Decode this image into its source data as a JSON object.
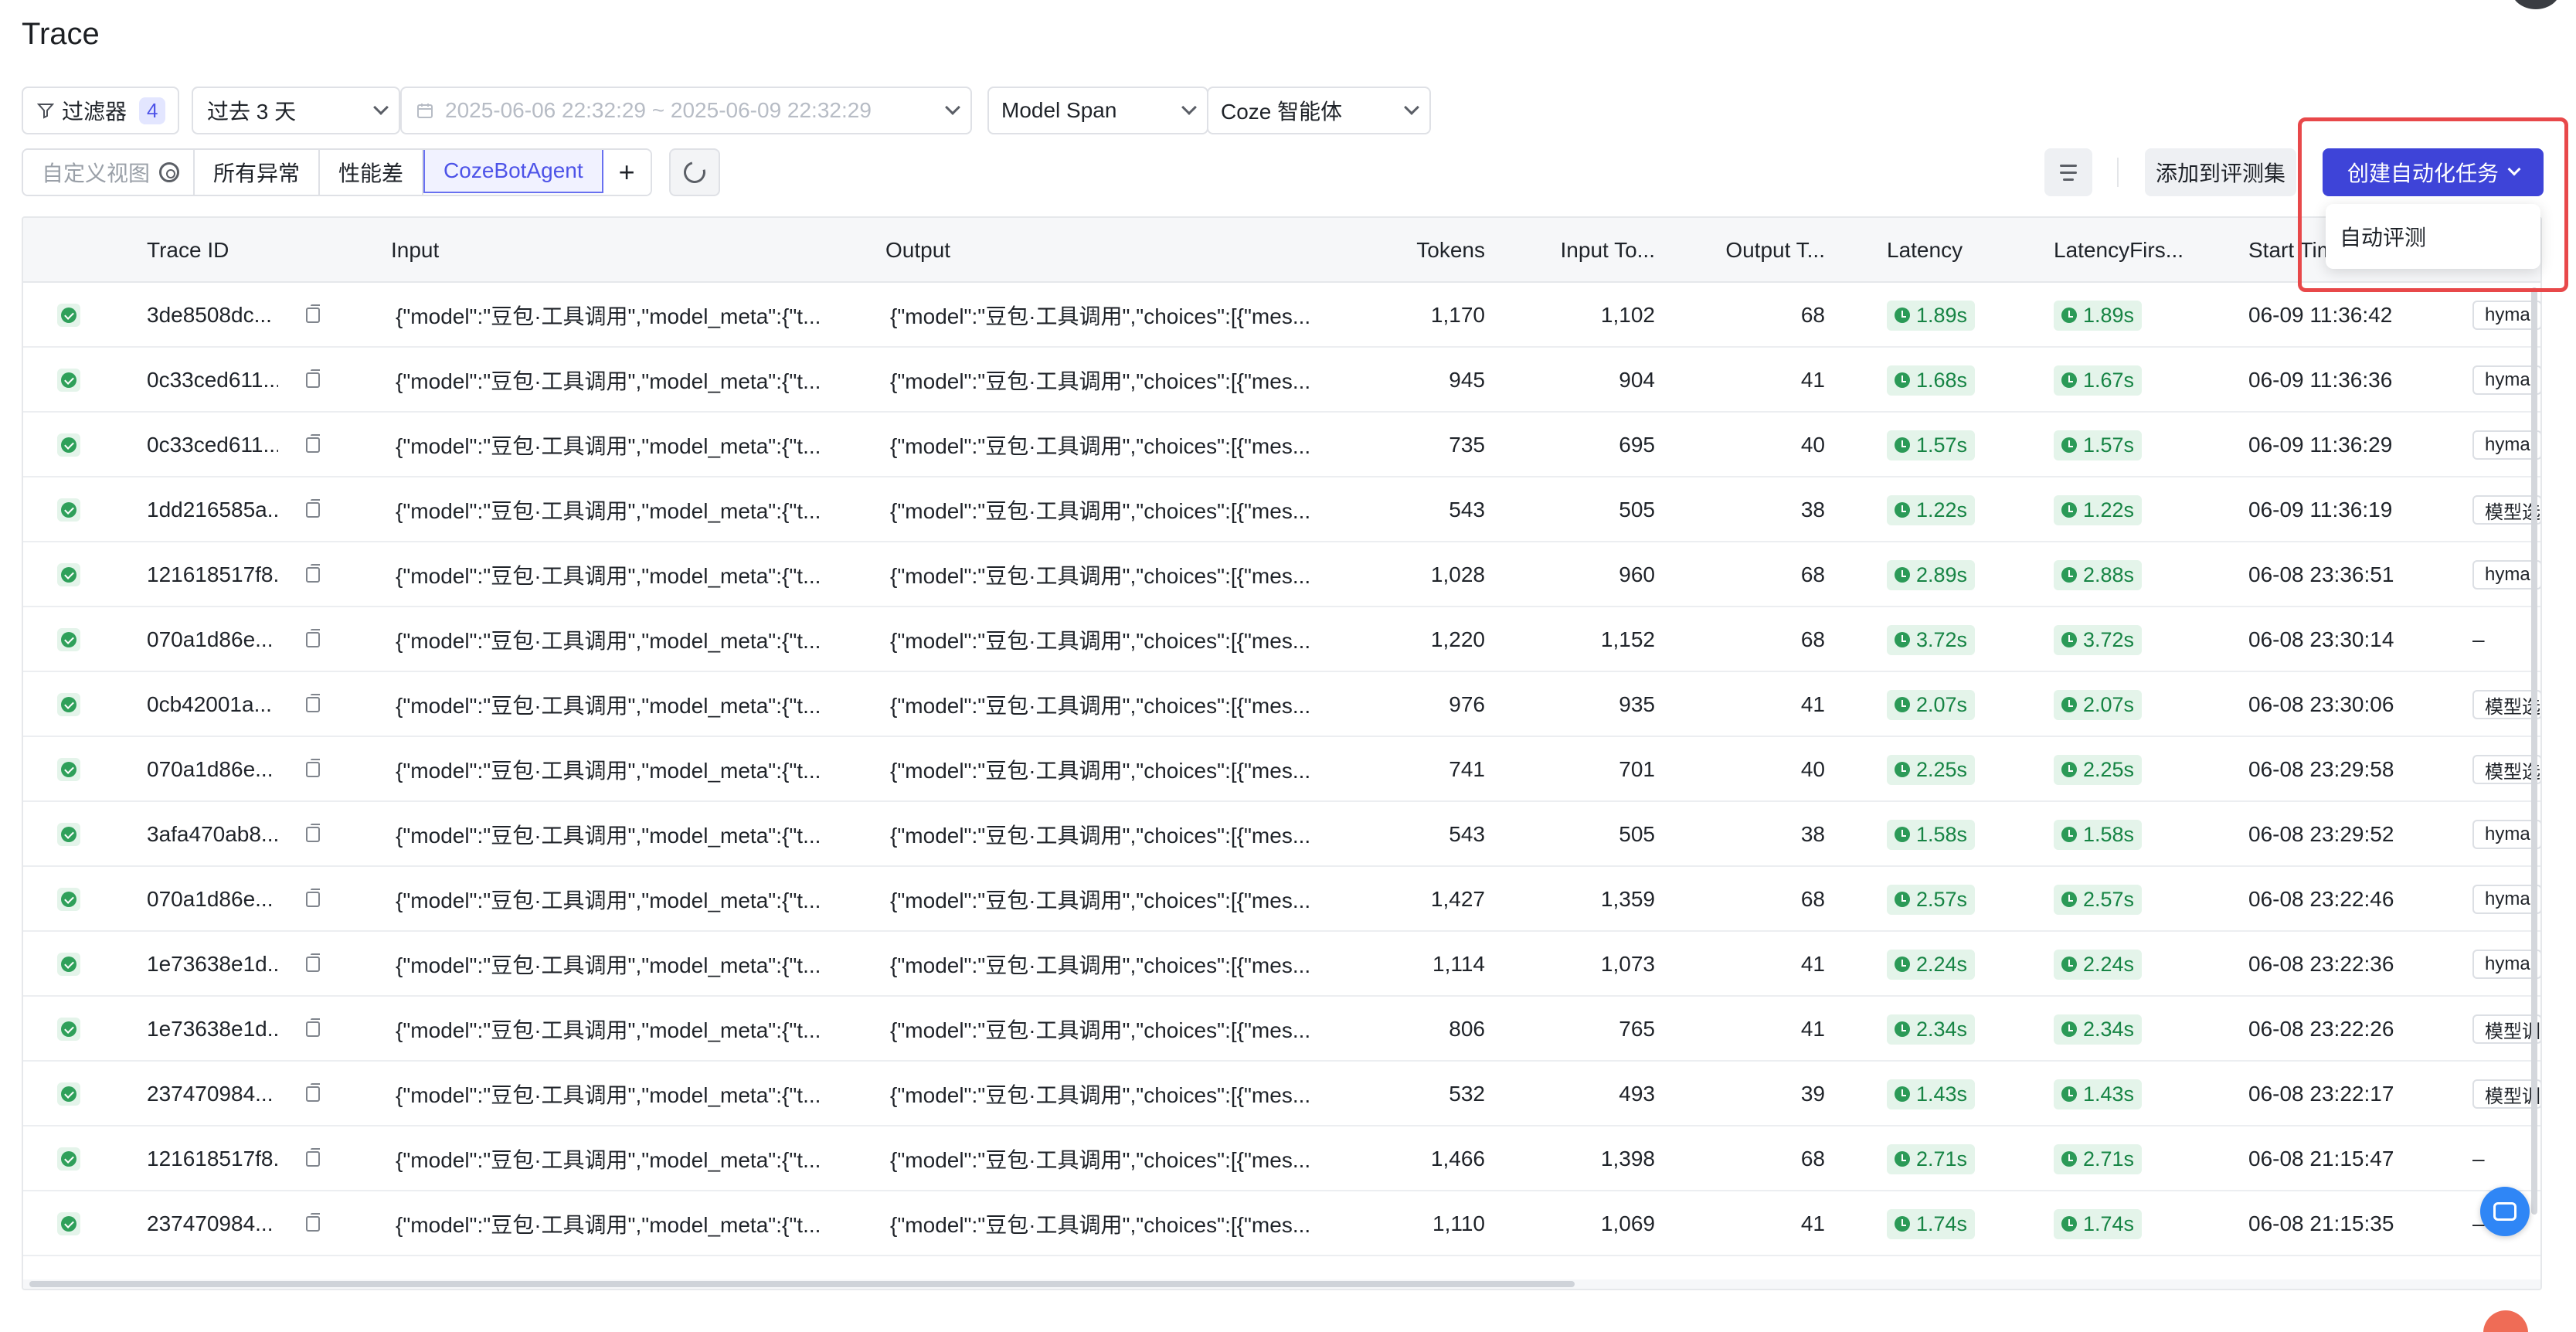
{
  "page": {
    "title": "Trace"
  },
  "toolbar": {
    "filter_label": "过滤器",
    "filter_count": "4",
    "time_range": "过去 3 天",
    "date_range": "2025-06-06 22:32:29 ~ 2025-06-09 22:32:29",
    "span_type": "Model Span",
    "platform": "Coze 智能体"
  },
  "views": {
    "custom_placeholder": "自定义视图",
    "items": [
      "所有异常",
      "性能差",
      "CozeBotAgent"
    ],
    "active": "CozeBotAgent",
    "add_label": "+"
  },
  "actions": {
    "add_to_eval_set": "添加到评测集",
    "create_task": "创建自动化任务",
    "dropdown_items": [
      "自动评测"
    ]
  },
  "table": {
    "columns": [
      "Trace ID",
      "Input",
      "Output",
      "Tokens",
      "Input To...",
      "Output T...",
      "Latency",
      "LatencyFirs...",
      "Start Tim"
    ],
    "rows": [
      {
        "id": "3de8508dc...",
        "input": "{\"model\":\"豆包·工具调用\",\"model_meta\":{\"t...",
        "output": "{\"model\":\"豆包·工具调用\",\"choices\":[{\"mes...",
        "tokens": "1,170",
        "in": "1,102",
        "out": "68",
        "lat": "1.89s",
        "first": "1.89s",
        "start": "06-09 11:36:42",
        "tag": "hyma"
      },
      {
        "id": "0c33ced611...",
        "input": "{\"model\":\"豆包·工具调用\",\"model_meta\":{\"t...",
        "output": "{\"model\":\"豆包·工具调用\",\"choices\":[{\"mes...",
        "tokens": "945",
        "in": "904",
        "out": "41",
        "lat": "1.68s",
        "first": "1.67s",
        "start": "06-09 11:36:36",
        "tag": "hyma"
      },
      {
        "id": "0c33ced611...",
        "input": "{\"model\":\"豆包·工具调用\",\"model_meta\":{\"t...",
        "output": "{\"model\":\"豆包·工具调用\",\"choices\":[{\"mes...",
        "tokens": "735",
        "in": "695",
        "out": "40",
        "lat": "1.57s",
        "first": "1.57s",
        "start": "06-09 11:36:29",
        "tag": "hyma"
      },
      {
        "id": "1dd216585a...",
        "input": "{\"model\":\"豆包·工具调用\",\"model_meta\":{\"t...",
        "output": "{\"model\":\"豆包·工具调用\",\"choices\":[{\"mes...",
        "tokens": "543",
        "in": "505",
        "out": "38",
        "lat": "1.22s",
        "first": "1.22s",
        "start": "06-09 11:36:19",
        "tag": "模型选"
      },
      {
        "id": "121618517f8...",
        "input": "{\"model\":\"豆包·工具调用\",\"model_meta\":{\"t...",
        "output": "{\"model\":\"豆包·工具调用\",\"choices\":[{\"mes...",
        "tokens": "1,028",
        "in": "960",
        "out": "68",
        "lat": "2.89s",
        "first": "2.88s",
        "start": "06-08 23:36:51",
        "tag": "hyma"
      },
      {
        "id": "070a1d86e...",
        "input": "{\"model\":\"豆包·工具调用\",\"model_meta\":{\"t...",
        "output": "{\"model\":\"豆包·工具调用\",\"choices\":[{\"mes...",
        "tokens": "1,220",
        "in": "1,152",
        "out": "68",
        "lat": "3.72s",
        "first": "3.72s",
        "start": "06-08 23:30:14",
        "tag": "–"
      },
      {
        "id": "0cb42001a...",
        "input": "{\"model\":\"豆包·工具调用\",\"model_meta\":{\"t...",
        "output": "{\"model\":\"豆包·工具调用\",\"choices\":[{\"mes...",
        "tokens": "976",
        "in": "935",
        "out": "41",
        "lat": "2.07s",
        "first": "2.07s",
        "start": "06-08 23:30:06",
        "tag": "模型选"
      },
      {
        "id": "070a1d86e...",
        "input": "{\"model\":\"豆包·工具调用\",\"model_meta\":{\"t...",
        "output": "{\"model\":\"豆包·工具调用\",\"choices\":[{\"mes...",
        "tokens": "741",
        "in": "701",
        "out": "40",
        "lat": "2.25s",
        "first": "2.25s",
        "start": "06-08 23:29:58",
        "tag": "模型选"
      },
      {
        "id": "3afa470ab8...",
        "input": "{\"model\":\"豆包·工具调用\",\"model_meta\":{\"t...",
        "output": "{\"model\":\"豆包·工具调用\",\"choices\":[{\"mes...",
        "tokens": "543",
        "in": "505",
        "out": "38",
        "lat": "1.58s",
        "first": "1.58s",
        "start": "06-08 23:29:52",
        "tag": "hyma"
      },
      {
        "id": "070a1d86e...",
        "input": "{\"model\":\"豆包·工具调用\",\"model_meta\":{\"t...",
        "output": "{\"model\":\"豆包·工具调用\",\"choices\":[{\"mes...",
        "tokens": "1,427",
        "in": "1,359",
        "out": "68",
        "lat": "2.57s",
        "first": "2.57s",
        "start": "06-08 23:22:46",
        "tag": "hyma"
      },
      {
        "id": "1e73638e1d...",
        "input": "{\"model\":\"豆包·工具调用\",\"model_meta\":{\"t...",
        "output": "{\"model\":\"豆包·工具调用\",\"choices\":[{\"mes...",
        "tokens": "1,114",
        "in": "1,073",
        "out": "41",
        "lat": "2.24s",
        "first": "2.24s",
        "start": "06-08 23:22:36",
        "tag": "hyma"
      },
      {
        "id": "1e73638e1d...",
        "input": "{\"model\":\"豆包·工具调用\",\"model_meta\":{\"t...",
        "output": "{\"model\":\"豆包·工具调用\",\"choices\":[{\"mes...",
        "tokens": "806",
        "in": "765",
        "out": "41",
        "lat": "2.34s",
        "first": "2.34s",
        "start": "06-08 23:22:26",
        "tag": "模型训"
      },
      {
        "id": "237470984...",
        "input": "{\"model\":\"豆包·工具调用\",\"model_meta\":{\"t...",
        "output": "{\"model\":\"豆包·工具调用\",\"choices\":[{\"mes...",
        "tokens": "532",
        "in": "493",
        "out": "39",
        "lat": "1.43s",
        "first": "1.43s",
        "start": "06-08 23:22:17",
        "tag": "模型训"
      },
      {
        "id": "121618517f8...",
        "input": "{\"model\":\"豆包·工具调用\",\"model_meta\":{\"t...",
        "output": "{\"model\":\"豆包·工具调用\",\"choices\":[{\"mes...",
        "tokens": "1,466",
        "in": "1,398",
        "out": "68",
        "lat": "2.71s",
        "first": "2.71s",
        "start": "06-08 21:15:47",
        "tag": "–"
      },
      {
        "id": "237470984...",
        "input": "{\"model\":\"豆包·工具调用\",\"model_meta\":{\"t...",
        "output": "{\"model\":\"豆包·工具调用\",\"choices\":[{\"mes...",
        "tokens": "1,110",
        "in": "1,069",
        "out": "41",
        "lat": "1.74s",
        "first": "1.74s",
        "start": "06-08 21:15:35",
        "tag": "–"
      }
    ]
  },
  "colors": {
    "accent": "#3e44d8",
    "success": "#2fa05a",
    "highlight": "#e8484a"
  },
  "icons": [
    "filter-icon",
    "calendar-icon",
    "gear-icon",
    "refresh-icon",
    "column-settings-icon",
    "copy-icon",
    "clock-icon",
    "status-ok-icon",
    "chat-icon"
  ]
}
